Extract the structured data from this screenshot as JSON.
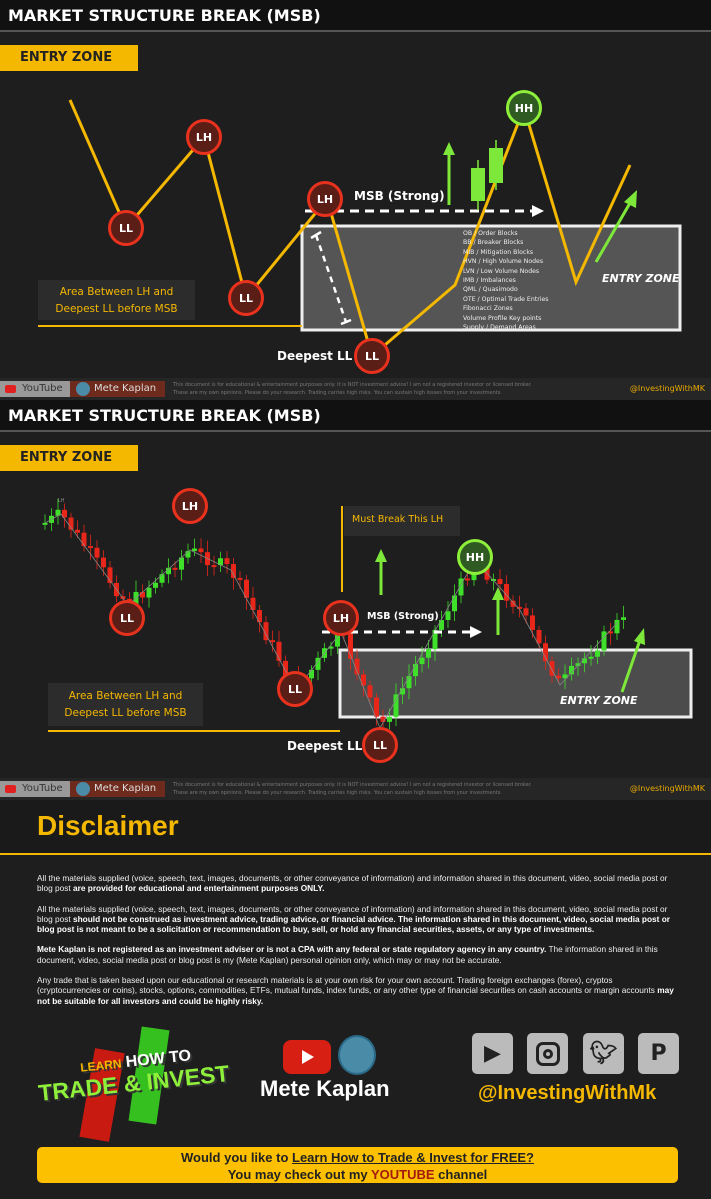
{
  "panel1": {
    "title": "MARKET STRUCTURE BREAK (MSB)",
    "entry_zone_tag": "ENTRY ZONE",
    "pivots": {
      "lh1": "LH",
      "ll1": "LL",
      "lh2": "LH",
      "ll2": "LL",
      "lh3": "LH",
      "ll3": "LL",
      "hh": "HH"
    },
    "msb_label": "MSB (Strong)",
    "area_label_1": "Area Between LH and",
    "area_label_2": "Deepest LL before MSB",
    "deepest_label": "Deepest LL",
    "entry_zone_label": "ENTRY ZONE",
    "zone_list": [
      "OB / Order Blocks",
      "BB / Breaker Blocks",
      "MIB / Mitigation Blocks",
      "HVN / High Volume Nodes",
      "LVN / Low Volume Nodes",
      "IMB / Imbalances",
      "QML / Quasimodo",
      "OTE / Optimal Trade Entries",
      "Fibonacci Zones",
      "Volume Profile Key points",
      "Supply / Demand Areas"
    ]
  },
  "panel2": {
    "title": "MARKET STRUCTURE BREAK (MSB)",
    "entry_zone_tag": "ENTRY ZONE",
    "pivots": {
      "lh1": "LH",
      "ll1": "LL",
      "ll2": "LL",
      "lh2": "LH",
      "ll3": "LL",
      "hh": "HH"
    },
    "must_break": "Must Break This LH",
    "msb_label": "MSB (Strong)",
    "area_label_1": "Area Between LH and",
    "area_label_2": "Deepest LL before MSB",
    "deepest_label": "Deepest LL",
    "entry_zone_label": "ENTRY ZONE",
    "small_lh": "LH"
  },
  "footer": {
    "youtube": "YouTube",
    "name": "Mete Kaplan",
    "note_1": "This document is for educational & entertainment purposes only. It is NOT investment advice! I am not a registered investor or licensed broker.",
    "note_2": "These are my own opinions. Please do your research. Trading carries high risks. You can sustain high losses from your investments.",
    "handle": "@InvestingWithMK"
  },
  "disclaimer": {
    "title": "Disclaimer",
    "p1_a": "All the materials supplied (voice, speech, text, images, documents, or other conveyance of information) and information shared in this document, video, social media post or blog post ",
    "p1_b": "are provided for educational and entertainment purposes ONLY.",
    "p2_a": "All the materials supplied (voice, speech, text, images, documents, or other conveyance of information) and information shared in this document, video, social media post or blog post ",
    "p2_b": "should not be construed as investment advice, trading advice, or financial advice. The information shared in this document, video, social media post or blog post is not meant to be a solicitation or recommendation to buy, sell, or hold any financial securities, assets, or any type of investments.",
    "p3_a": "Mete Kaplan is not registered as an investment adviser or is not a CPA with any federal or state regulatory agency in any country.",
    "p3_b": " The information shared in this document, video, social media post or blog post is my (Mete Kaplan) personal opinion only, which may or may not be accurate.",
    "p4_a": "Any trade that is taken based upon our educational or research materials is at your own risk for your own account. Trading foreign exchanges (forex), cryptos (cryptocurrencies or coins), stocks, options, commodities, ETFs, mutual funds, index funds, or any other type of financial securities on cash accounts or margin accounts ",
    "p4_b": "may not be suitable for all investors and could be highly risky."
  },
  "branding": {
    "logo_line1_a": "LEARN",
    "logo_line1_b": "HOW TO",
    "logo_line2": "TRADE & INVEST",
    "name": "Mete Kaplan",
    "handle": "@InvestingWithMk",
    "social_icons": [
      "youtube-icon",
      "instagram-icon",
      "twitter-icon",
      "pinterest-icon"
    ]
  },
  "cta": {
    "line1_a": "Would you like to ",
    "line1_link": "Learn How to Trade & Invest for FREE?",
    "line2_a": "You may check out my ",
    "line2_red": "YOUTUBE",
    "line2_b": " channel"
  },
  "colors": {
    "accent": "#f5b800",
    "bear": "#e8321e",
    "bull": "#3ee02a",
    "background": "#1e1e1e"
  }
}
